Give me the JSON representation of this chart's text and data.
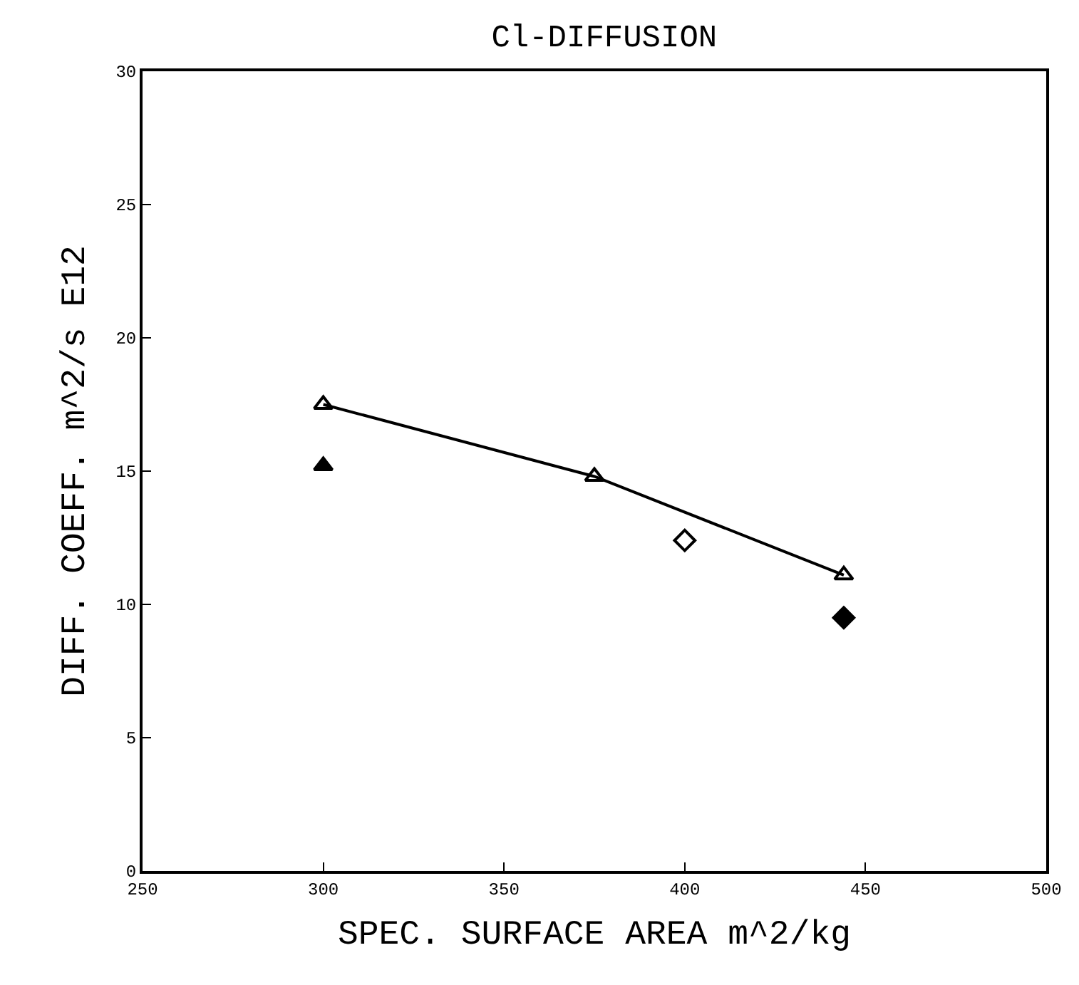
{
  "chart_data": {
    "type": "scatter",
    "title": "Cl-DIFFUSION",
    "xlabel": "SPEC. SURFACE AREA m^2/kg",
    "ylabel": "DIFF. COEFF. m^2/s E12",
    "xlim": [
      250,
      500
    ],
    "xticks": [
      250,
      300,
      350,
      400,
      450,
      500
    ],
    "ylim": [
      0,
      30
    ],
    "yticks": [
      0,
      5,
      10,
      15,
      20,
      25,
      30
    ],
    "series": [
      {
        "type": "line",
        "marker": "triangle-open",
        "color": "#000000",
        "x": [
          300,
          375,
          444
        ],
        "values": [
          17.5,
          14.8,
          11.1
        ]
      },
      {
        "marker": "triangle",
        "color": "#000000",
        "x": [
          300
        ],
        "values": [
          15.2
        ]
      },
      {
        "marker": "diamond-open",
        "color": "#000000",
        "x": [
          400
        ],
        "values": [
          12.4
        ]
      },
      {
        "marker": "diamond",
        "color": "#000000",
        "x": [
          444
        ],
        "values": [
          9.5
        ]
      }
    ]
  }
}
